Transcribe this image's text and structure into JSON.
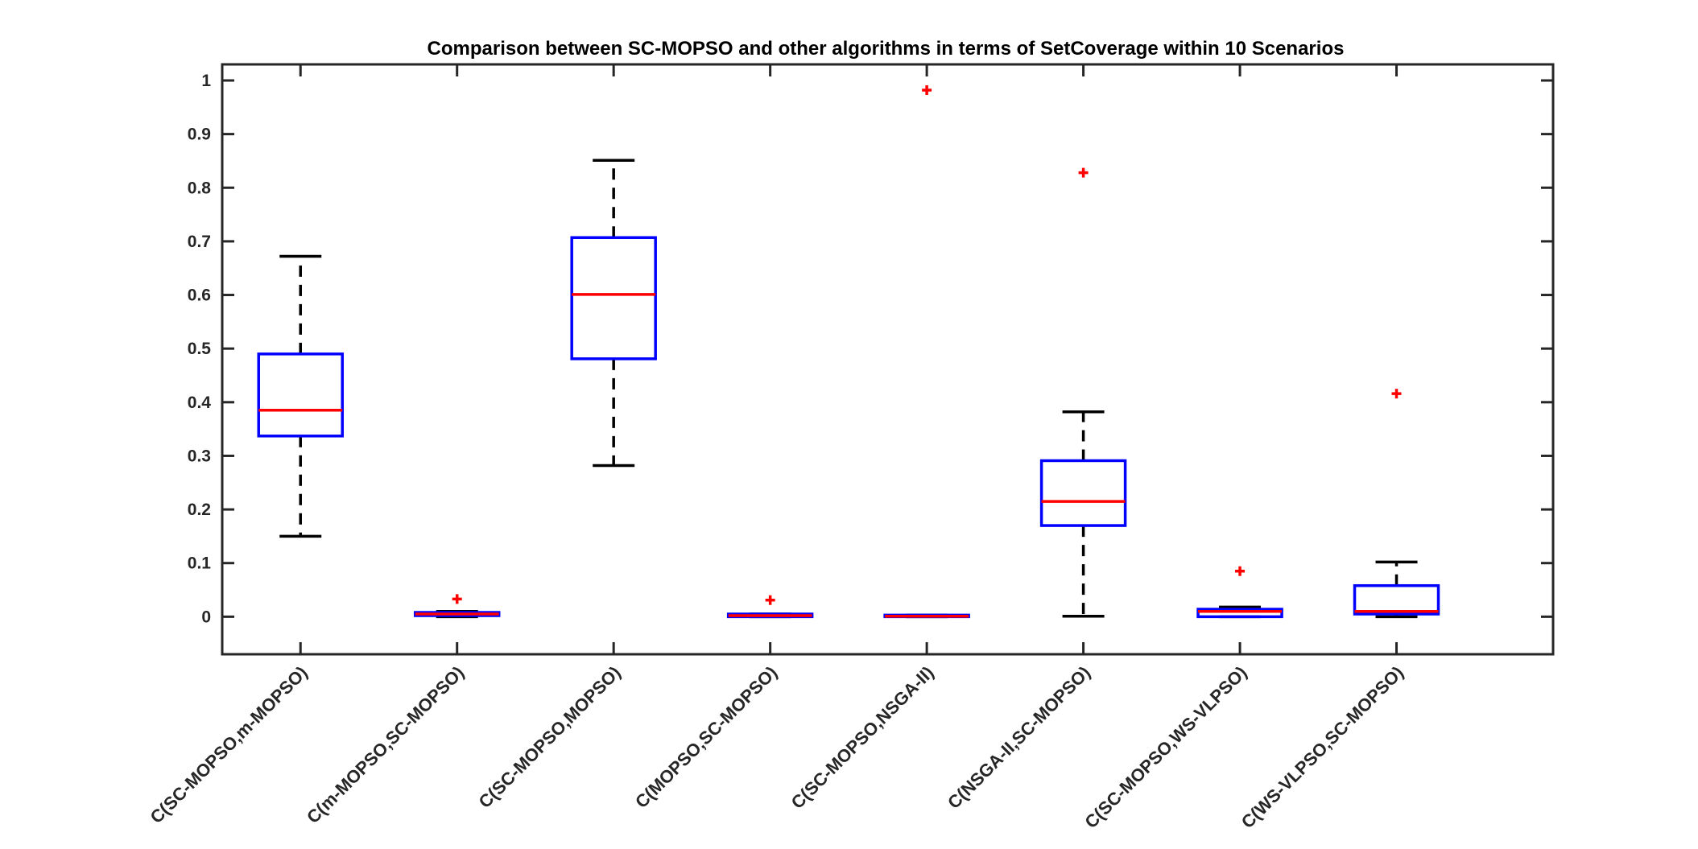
{
  "chart_data": {
    "type": "boxplot",
    "title": "Comparison between SC-MOPSO and other algorithms in terms of SetCoverage within 10 Scenarios",
    "xlabel": "",
    "ylabel": "",
    "ylim": [
      -0.07,
      1.03
    ],
    "yticks": [
      0,
      0.1,
      0.2,
      0.3,
      0.4,
      0.5,
      0.6,
      0.7,
      0.8,
      0.9,
      1
    ],
    "ytick_labels": [
      "0",
      "0.1",
      "0.2",
      "0.3",
      "0.4",
      "0.5",
      "0.6",
      "0.7",
      "0.8",
      "0.9",
      "1"
    ],
    "grid": false,
    "categories": [
      "C(SC-MOPSO,m-MOPSO)",
      "C(m-MOPSO,SC-MOPSO)",
      "C(SC-MOPSO,MOPSO)",
      "C(MOPSO,SC-MOPSO)",
      "C(SC-MOPSO,NSGA-II)",
      "C(NSGA-II,SC-MOPSO)",
      "C(SC-MOPSO,WS-VLPSO)",
      "C(WS-VLPSO,SC-MOPSO)"
    ],
    "boxes": [
      {
        "whisker_low": 0.15,
        "q1": 0.337,
        "median": 0.385,
        "q3": 0.49,
        "whisker_high": 0.672,
        "outliers": []
      },
      {
        "whisker_low": 0.0,
        "q1": 0.002,
        "median": 0.005,
        "q3": 0.008,
        "whisker_high": 0.01,
        "outliers": [
          0.033
        ]
      },
      {
        "whisker_low": 0.282,
        "q1": 0.481,
        "median": 0.601,
        "q3": 0.707,
        "whisker_high": 0.851,
        "outliers": []
      },
      {
        "whisker_low": 0.0,
        "q1": 0.0,
        "median": 0.002,
        "q3": 0.005,
        "whisker_high": 0.005,
        "outliers": [
          0.031
        ]
      },
      {
        "whisker_low": 0.0,
        "q1": 0.0,
        "median": 0.001,
        "q3": 0.003,
        "whisker_high": 0.003,
        "outliers": [
          0.982
        ]
      },
      {
        "whisker_low": 0.001,
        "q1": 0.17,
        "median": 0.215,
        "q3": 0.291,
        "whisker_high": 0.382,
        "outliers": [
          0.828
        ]
      },
      {
        "whisker_low": 0.0,
        "q1": 0.0,
        "median": 0.01,
        "q3": 0.014,
        "whisker_high": 0.018,
        "outliers": [
          0.085
        ]
      },
      {
        "whisker_low": 0.0,
        "q1": 0.005,
        "median": 0.01,
        "q3": 0.058,
        "whisker_high": 0.102,
        "outliers": [
          0.416
        ]
      }
    ],
    "colors": {
      "box": "#0000ff",
      "median": "#ff0000",
      "whisker": "#000000",
      "outlier": "#ff0000",
      "axes": "#262626"
    }
  }
}
